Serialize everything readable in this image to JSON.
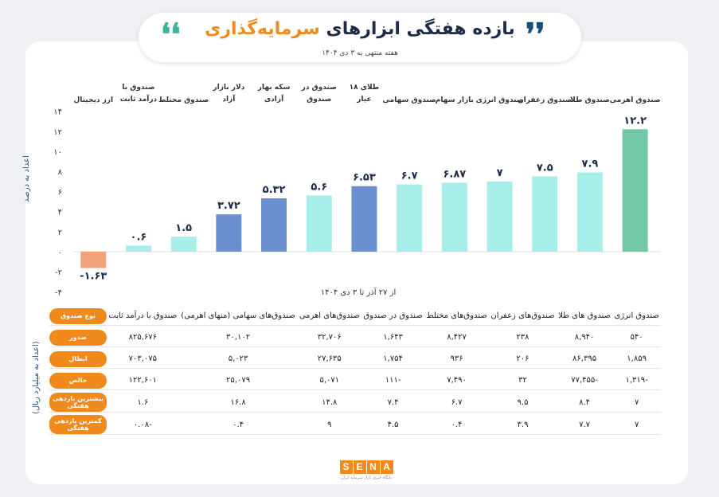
{
  "header": {
    "title_part1": "بازده هفتگی ابزارهای",
    "title_part2": "سرمایه‌گذاری",
    "subtitle": "هفته منتهی به ۳ دی ۱۴۰۴"
  },
  "chart_data": {
    "type": "bar",
    "categories": [
      "صندوق اهرمی",
      "صندوق طلا",
      "صندوق زعفران",
      "صندوق انرژی",
      "بازار سهام",
      "صندوق سهامی",
      "طلای ۱۸ عیار",
      "صندوق در صندوق",
      "سکه بهار آزادی",
      "دلار بازار آزاد",
      "صندوق مختلط",
      "صندوق با درآمد ثابت",
      "ارز دیجیتال"
    ],
    "values": [
      12.2,
      7.9,
      7.5,
      7,
      6.87,
      6.7,
      6.53,
      5.6,
      5.32,
      3.72,
      1.5,
      0.6,
      -1.63
    ],
    "value_labels": [
      "۱۲.۲",
      "۷.۹",
      "۷.۵",
      "۷",
      "۶.۸۷",
      "۶.۷",
      "۶.۵۳",
      "۵.۶",
      "۵.۳۲",
      "۳.۷۲",
      "۱.۵",
      "۰.۶",
      "-۱.۶۳"
    ],
    "bar_colors": [
      "#72c9a8",
      "#a7ede9",
      "#a7ede9",
      "#a7ede9",
      "#a7ede9",
      "#a7ede9",
      "#6b8fd0",
      "#a7ede9",
      "#6b8fd0",
      "#6b8fd0",
      "#a7ede9",
      "#a7ede9",
      "#f0a37a"
    ],
    "ylim": [
      -4,
      14
    ],
    "yticks": [
      14,
      12,
      10,
      8,
      6,
      4,
      2,
      0,
      -2,
      -4
    ],
    "ytick_labels": [
      "۱۴",
      "۱۲",
      "۱۰",
      "۸",
      "۶",
      "۴",
      "۲",
      "۰",
      "-۲",
      "-۴"
    ],
    "ylabel": "اعداد به درصد",
    "xnote": "از ۲۷ آذر تا ۳ دی ۱۴۰۴",
    "grid": false,
    "legend": "none"
  },
  "table": {
    "side_label": "(اعداد به میلیارد ریال)",
    "columns": [
      "صندوق انرژی",
      "صندوق های طلا",
      "صندوق‌های زعفران",
      "صندوق‌های مختلط",
      "صندوق در صندوق",
      "صندوق‌های اهرمی",
      "صندوق‌های سهامی (منهای اهرمی)",
      "صندوق با درآمد ثابت"
    ],
    "header_label": "نوع صندوق",
    "rows": [
      {
        "label": "صدور",
        "values": [
          "۵۴۰",
          "۸,۹۴۰",
          "۲۳۸",
          "۸,۴۲۷",
          "۱,۶۴۳",
          "۳۲,۷۰۶",
          "۳۰,۱۰۲",
          "۸۲۵,۶۷۶"
        ]
      },
      {
        "label": "ابطال",
        "values": [
          "۱,۸۵۹",
          "۸۶,۳۹۵",
          "۲۰۶",
          "۹۳۶",
          "۱,۷۵۴",
          "۲۷,۶۳۵",
          "۵,۰۲۳",
          "۷۰۳,۰۷۵"
        ]
      },
      {
        "label": "خالص",
        "values": [
          "-۱,۳۱۹",
          "-۷۷,۴۵۵",
          "۳۲",
          "۷,۴۹۰",
          "-۱۱۱",
          "۵,۰۷۱",
          "۲۵,۰۷۹",
          "۱۲۲,۶۰۱"
        ]
      },
      {
        "label": "بیشترین بازدهی هفتگی",
        "values": [
          "۷",
          "۸.۴",
          "۹.۵",
          "۶.۷",
          "۷.۴",
          "۱۴.۸",
          "۱۶.۸",
          "۱.۶"
        ]
      },
      {
        "label": "کمترین بازدهی هفتگی",
        "values": [
          "۷",
          "۷.۷",
          "۳.۹",
          "۰.۴",
          "۴.۵",
          "۹",
          "۰.۴",
          "-۰.۰۸"
        ]
      }
    ]
  },
  "logo": {
    "letters": [
      "S",
      "E",
      "N",
      "A"
    ],
    "tagline": "پایگاه خبری بازار سرمایه ایران"
  },
  "colors": {
    "accent": "#f08a1c",
    "navy": "#1c2b4a",
    "teal": "#3cb39a"
  }
}
